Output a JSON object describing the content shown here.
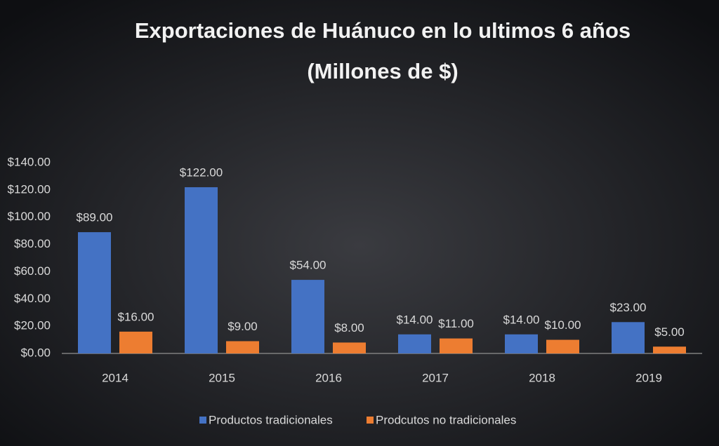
{
  "chart_data": {
    "type": "bar",
    "title": "Exportaciones de Huánuco en lo ultimos 6 años",
    "subtitle": "(Millones de $)",
    "categories": [
      "2014",
      "2015",
      "2016",
      "2017",
      "2018",
      "2019"
    ],
    "series": [
      {
        "name": "Productos tradicionales",
        "color": "#4472c4",
        "values": [
          89,
          122,
          54,
          14,
          14,
          23
        ],
        "value_labels": [
          "$89.00",
          "$122.00",
          "$54.00",
          "$14.00",
          "$14.00",
          "$23.00"
        ]
      },
      {
        "name": "Prodcutos no tradicionales",
        "color": "#ed7d31",
        "values": [
          16,
          9,
          8,
          11,
          10,
          5
        ],
        "value_labels": [
          "$16.00",
          "$9.00",
          "$8.00",
          "$11.00",
          "$10.00",
          "$5.00"
        ]
      }
    ],
    "ylim": [
      0,
      140
    ],
    "yticks": [
      {
        "value": 0,
        "label": "$0.00"
      },
      {
        "value": 20,
        "label": "$20.00"
      },
      {
        "value": 40,
        "label": "$40.00"
      },
      {
        "value": 60,
        "label": "$60.00"
      },
      {
        "value": 80,
        "label": "$80.00"
      },
      {
        "value": 100,
        "label": "$100.00"
      },
      {
        "value": 120,
        "label": "$120.00"
      },
      {
        "value": 140,
        "label": "$140.00"
      }
    ],
    "grid": false
  }
}
